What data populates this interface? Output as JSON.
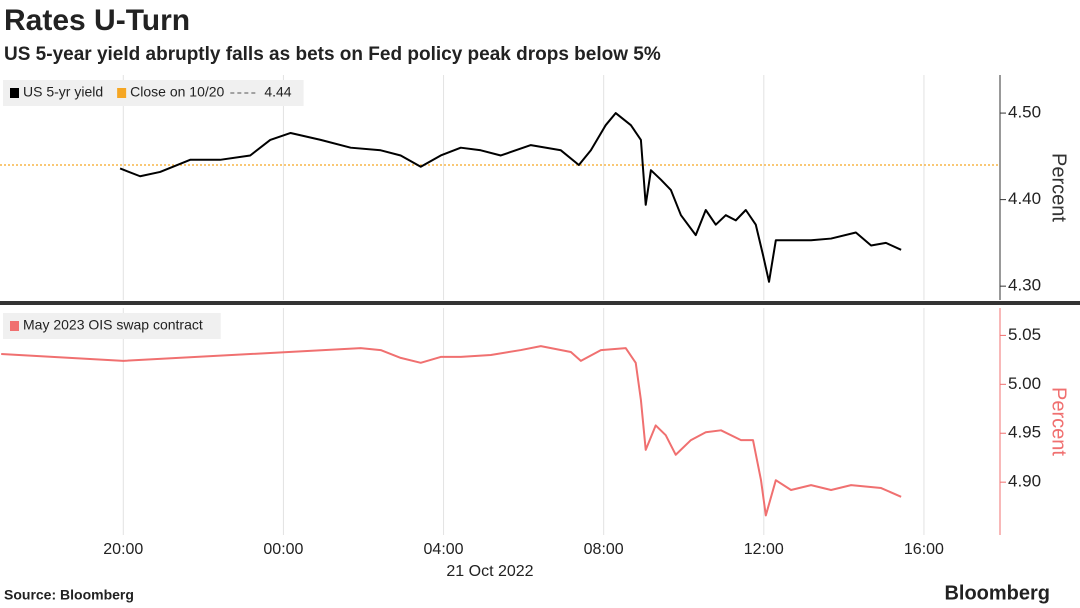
{
  "header": {
    "title": "Rates U-Turn",
    "subtitle": "US 5-year yield abruptly falls as bets on Fed policy peak drops below 5%"
  },
  "x_axis": {
    "xlim": [
      -7.08,
      17.9
    ],
    "xticks": [
      {
        "value": -4,
        "label": "20:00"
      },
      {
        "value": 0,
        "label": "00:00"
      },
      {
        "value": 4,
        "label": "04:00"
      },
      {
        "value": 8,
        "label": "08:00"
      },
      {
        "value": 12,
        "label": "12:00"
      },
      {
        "value": 16,
        "label": "16:00"
      }
    ],
    "date_label": "21 Oct 2022",
    "grid": true
  },
  "chart_data": [
    {
      "type": "line",
      "ylabel": "Percent",
      "axis_color": "#333333",
      "ylim": [
        4.284,
        4.544
      ],
      "yticks": [
        {
          "value": 4.3,
          "label": "4.30"
        },
        {
          "value": 4.4,
          "label": "4.40"
        },
        {
          "value": 4.5,
          "label": "4.50"
        }
      ],
      "reference": {
        "name": "Close on 10/20",
        "value": 4.44,
        "color": "#f5a623"
      },
      "series": [
        {
          "name": "US 5-yr yield",
          "color": "#000000",
          "x": [
            -4.08,
            -3.58,
            -3.08,
            -2.33,
            -1.58,
            -0.83,
            -0.33,
            0.18,
            0.93,
            1.68,
            2.43,
            2.93,
            3.43,
            3.93,
            4.43,
            4.93,
            5.43,
            6.18,
            6.93,
            7.38,
            7.68,
            8.05,
            8.3,
            8.68,
            8.93,
            9.05,
            9.18,
            9.43,
            9.68,
            9.93,
            10.3,
            10.55,
            10.8,
            11.05,
            11.3,
            11.55,
            11.8,
            11.98,
            12.13,
            12.3,
            12.68,
            13.18,
            13.68,
            14.3,
            14.68,
            15.05,
            15.43
          ],
          "values": [
            4.436,
            4.427,
            4.432,
            4.446,
            4.446,
            4.451,
            4.469,
            4.477,
            4.469,
            4.46,
            4.457,
            4.451,
            4.438,
            4.451,
            4.46,
            4.457,
            4.451,
            4.463,
            4.457,
            4.44,
            4.457,
            4.486,
            4.5,
            4.486,
            4.469,
            4.394,
            4.434,
            4.423,
            4.411,
            4.382,
            4.359,
            4.388,
            4.371,
            4.382,
            4.376,
            4.388,
            4.371,
            4.336,
            4.305,
            4.353,
            4.353,
            4.353,
            4.355,
            4.362,
            4.347,
            4.35,
            4.342
          ]
        }
      ]
    },
    {
      "type": "line",
      "ylabel": "Percent",
      "axis_color": "#f07070",
      "ylim": [
        4.846,
        5.078
      ],
      "yticks": [
        {
          "value": 4.9,
          "label": "4.90"
        },
        {
          "value": 4.95,
          "label": "4.95"
        },
        {
          "value": 5.0,
          "label": "5.00"
        },
        {
          "value": 5.05,
          "label": "5.05"
        }
      ],
      "series": [
        {
          "name": "May 2023 OIS swap contract",
          "color": "#f07070",
          "x": [
            -7.05,
            -4.0,
            1.93,
            2.43,
            2.93,
            3.43,
            3.93,
            4.43,
            5.18,
            5.93,
            6.43,
            7.18,
            7.43,
            7.93,
            8.55,
            8.8,
            8.93,
            9.05,
            9.3,
            9.55,
            9.8,
            10.18,
            10.55,
            10.93,
            11.43,
            11.73,
            11.93,
            12.05,
            12.3,
            12.68,
            13.18,
            13.68,
            14.18,
            14.93,
            15.43
          ],
          "values": [
            5.031,
            5.024,
            5.037,
            5.035,
            5.027,
            5.022,
            5.028,
            5.028,
            5.03,
            5.035,
            5.039,
            5.033,
            5.024,
            5.035,
            5.037,
            5.022,
            4.984,
            4.933,
            4.958,
            4.948,
            4.928,
            4.943,
            4.951,
            4.953,
            4.943,
            4.943,
            4.902,
            4.866,
            4.902,
            4.892,
            4.897,
            4.892,
            4.897,
            4.894,
            4.885
          ]
        }
      ]
    }
  ],
  "footer": {
    "source": "Source: Bloomberg",
    "brand": "Bloomberg"
  }
}
